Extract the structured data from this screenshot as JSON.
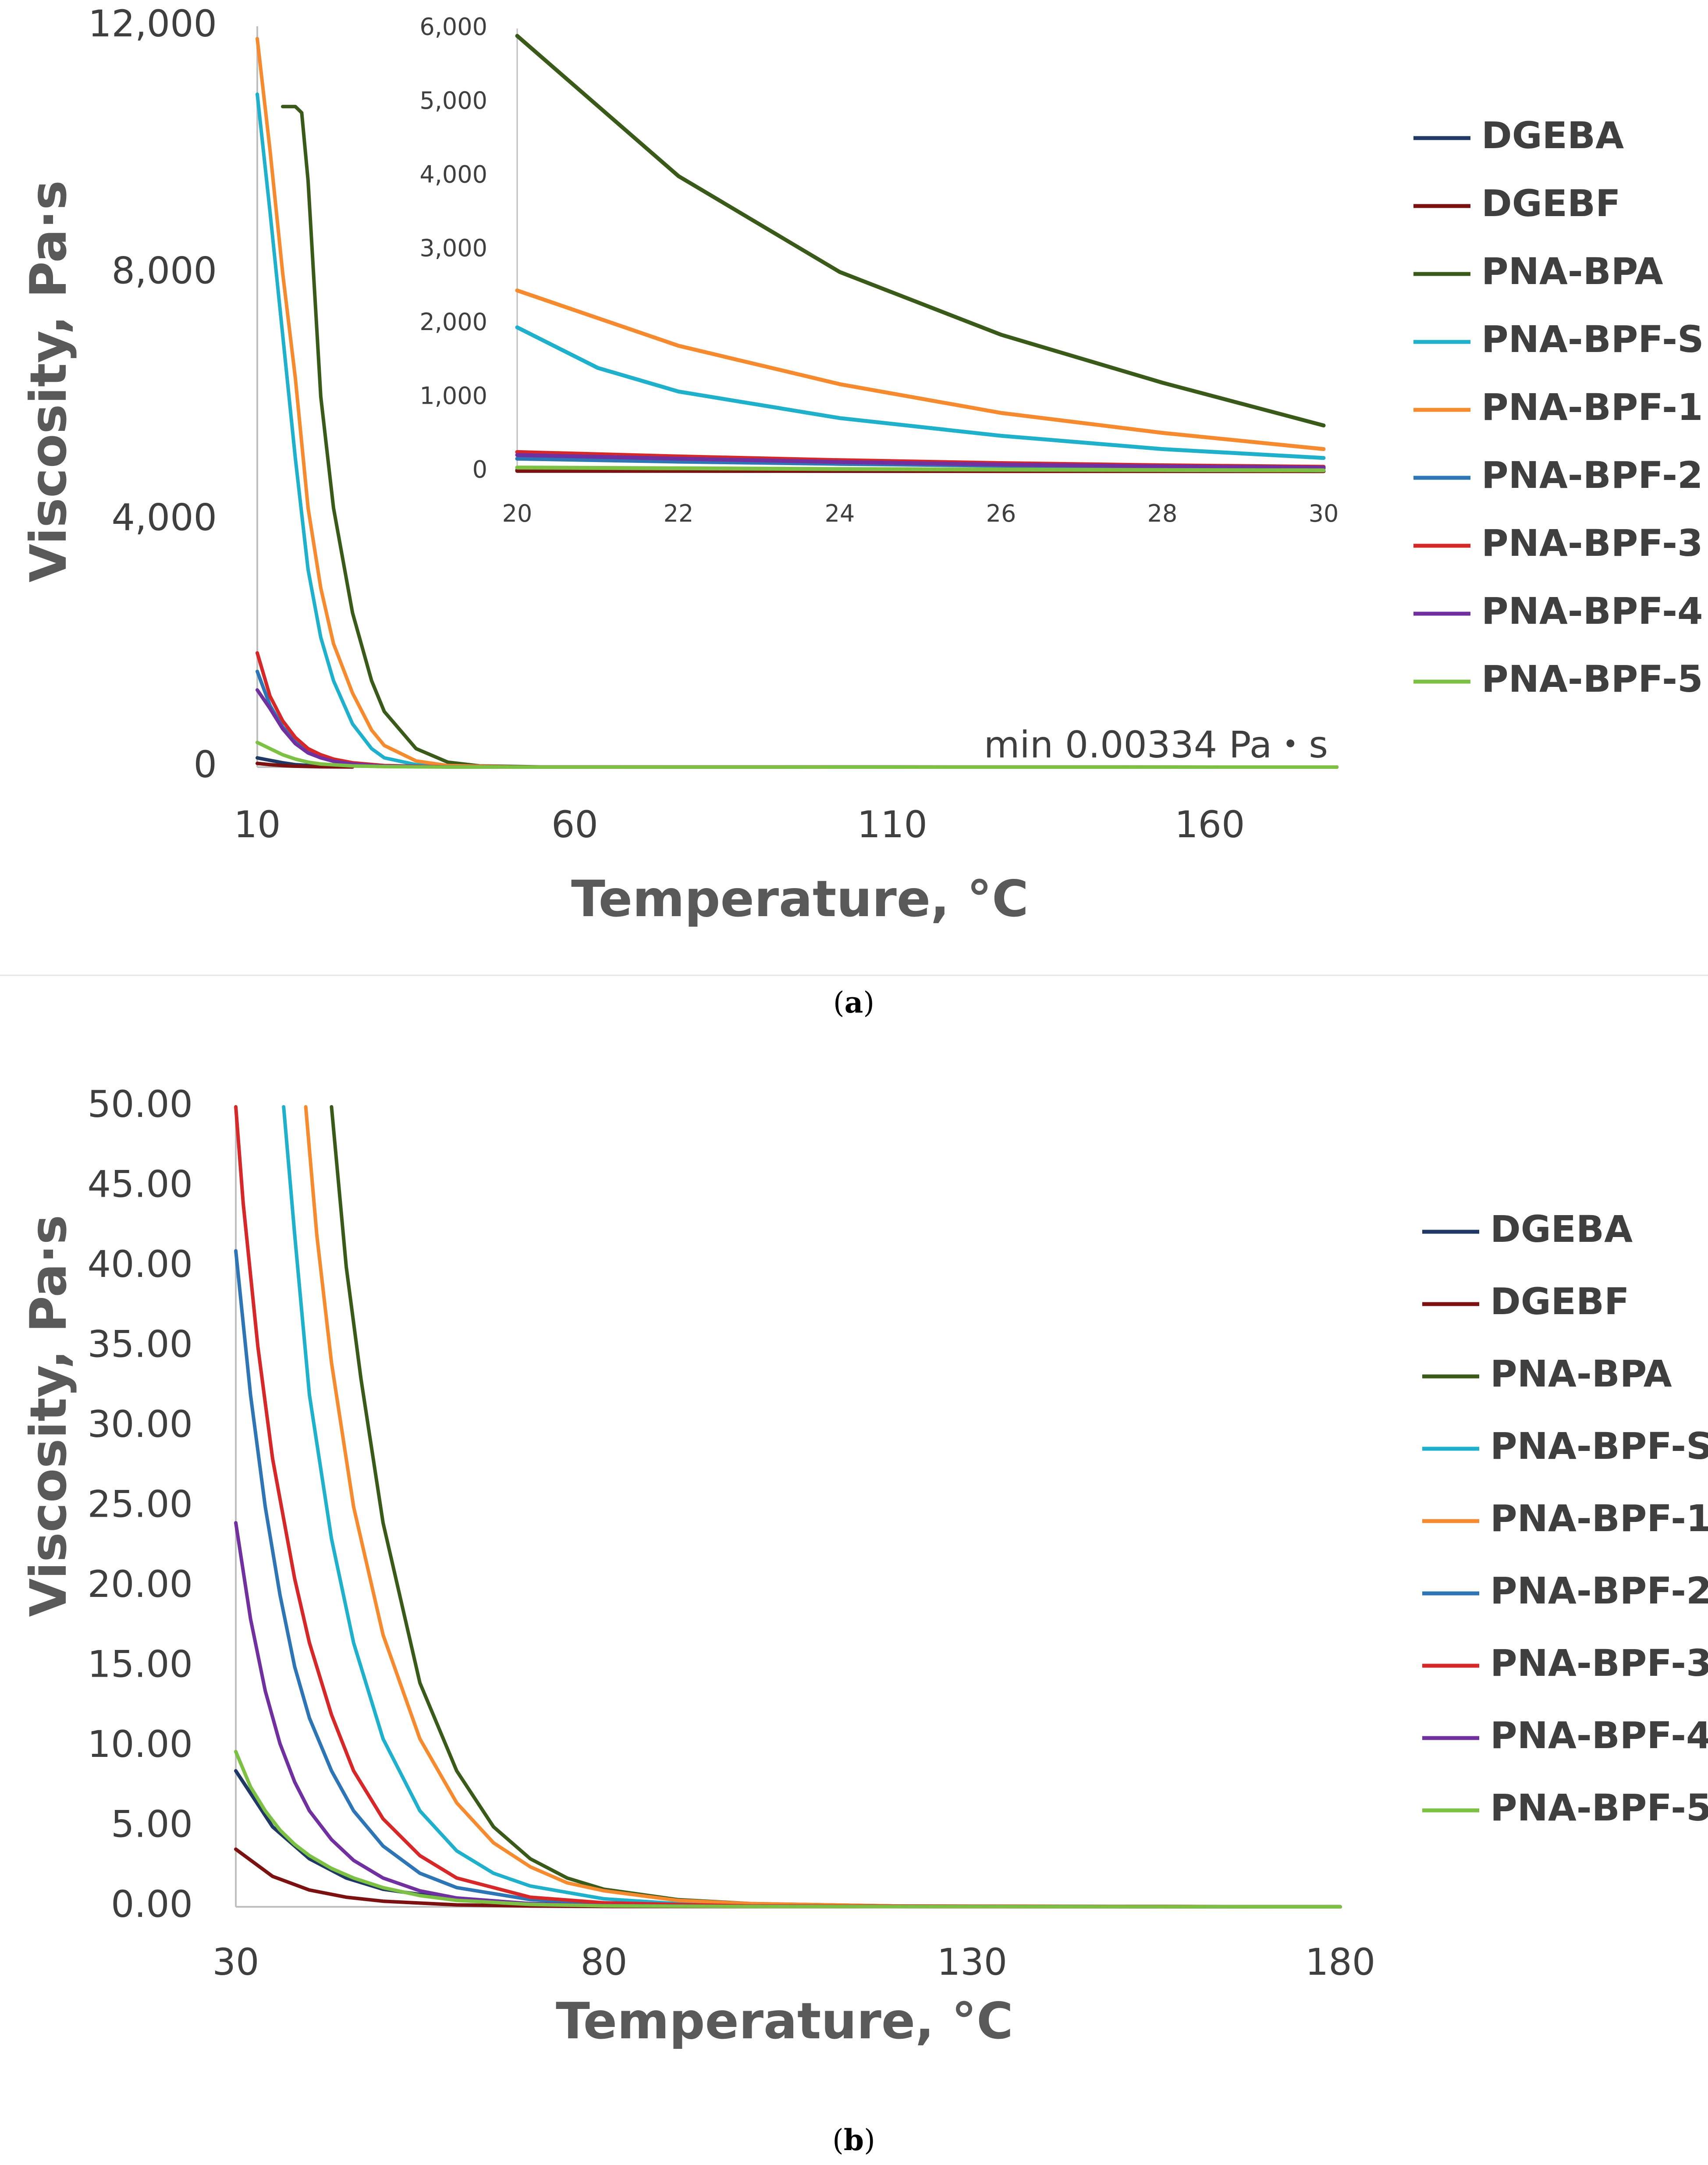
{
  "colors": {
    "DGEBA": "#1f3864",
    "DGEBF": "#7b1111",
    "PNA-BPA": "#3a5a1a",
    "PNA-BPF-S": "#1fb0cc",
    "PNA-BPF-1": "#f68a2e",
    "PNA-BPF-2": "#2e75b6",
    "PNA-BPF-3": "#d62828",
    "PNA-BPF-4": "#7030a0",
    "PNA-BPF-5": "#7cc143",
    "axis": "#bfbfbf",
    "text": "#3f3f3f"
  },
  "panel_a": {
    "caption_open": "(",
    "caption_letter": "a",
    "caption_close": ")"
  },
  "panel_b": {
    "caption_open": "(",
    "caption_letter": "b",
    "caption_close": ")"
  },
  "chart_data": [
    {
      "id": "a-main",
      "type": "line",
      "title": "",
      "xlabel": "Temperature, °C",
      "ylabel": "Viscosity, Pa·s",
      "xlim": [
        10,
        180
      ],
      "ylim": [
        0,
        12000
      ],
      "xticks": [
        10,
        60,
        110,
        160
      ],
      "xtick_labels": [
        "10",
        "60",
        "110",
        "160"
      ],
      "yticks": [
        0,
        4000,
        8000,
        12000
      ],
      "ytick_labels": [
        "0",
        "4,000",
        "8,000",
        "12,000"
      ],
      "annotation": "min 0.00334 Pa・s",
      "legend": [
        "DGEBA",
        "DGEBF",
        "PNA-BPA",
        "PNA-BPF-S",
        "PNA-BPF-1",
        "PNA-BPF-2",
        "PNA-BPF-3",
        "PNA-BPF-4",
        "PNA-BPF-5"
      ],
      "series": [
        {
          "name": "DGEBA",
          "x": [
            10,
            12,
            14,
            16,
            20,
            25
          ],
          "y": [
            150,
            110,
            70,
            40,
            15,
            5
          ]
        },
        {
          "name": "DGEBF",
          "x": [
            10,
            12,
            14,
            16,
            20,
            25
          ],
          "y": [
            60,
            40,
            25,
            15,
            5,
            2
          ]
        },
        {
          "name": "PNA-BPA",
          "x": [
            14,
            16,
            17,
            18,
            20,
            22,
            25,
            28,
            30,
            35,
            40,
            45,
            55,
            70,
            180
          ],
          "y": [
            10700,
            10700,
            10600,
            9500,
            6000,
            4200,
            2500,
            1400,
            900,
            300,
            80,
            20,
            3,
            0.5,
            0.003
          ]
        },
        {
          "name": "PNA-BPF-S",
          "x": [
            10,
            12,
            14,
            16,
            18,
            20,
            22,
            25,
            28,
            30,
            35,
            45,
            60,
            180
          ],
          "y": [
            10900,
            9000,
            7000,
            5000,
            3200,
            2100,
            1400,
            700,
            300,
            150,
            40,
            5,
            1,
            0.003
          ]
        },
        {
          "name": "PNA-BPF-1",
          "x": [
            10,
            12,
            14,
            16,
            18,
            20,
            22,
            25,
            28,
            30,
            35,
            40,
            50,
            65,
            180
          ],
          "y": [
            11800,
            10000,
            8000,
            6300,
            4200,
            2900,
            2000,
            1200,
            600,
            350,
            100,
            25,
            4,
            0.5,
            0.003
          ]
        },
        {
          "name": "PNA-BPF-2",
          "x": [
            10,
            12,
            14,
            16,
            18,
            20,
            22,
            25,
            30,
            40,
            180
          ],
          "y": [
            1550,
            1000,
            650,
            420,
            260,
            170,
            110,
            60,
            20,
            3,
            0.003
          ]
        },
        {
          "name": "PNA-BPF-3",
          "x": [
            10,
            12,
            14,
            16,
            18,
            20,
            22,
            25,
            30,
            40,
            180
          ],
          "y": [
            1850,
            1150,
            750,
            480,
            300,
            200,
            130,
            70,
            25,
            3,
            0.003
          ]
        },
        {
          "name": "PNA-BPF-4",
          "x": [
            10,
            12,
            14,
            16,
            18,
            20,
            22,
            25,
            30,
            40,
            180
          ],
          "y": [
            1250,
            950,
            620,
            380,
            230,
            150,
            95,
            50,
            15,
            2,
            0.003
          ]
        },
        {
          "name": "PNA-BPF-5",
          "x": [
            10,
            12,
            14,
            16,
            18,
            20,
            25,
            30,
            40,
            180
          ],
          "y": [
            400,
            300,
            200,
            130,
            80,
            50,
            20,
            8,
            1,
            0.003
          ]
        }
      ]
    },
    {
      "id": "a-inset",
      "type": "line",
      "title": "",
      "xlabel": "",
      "ylabel": "",
      "xlim": [
        20,
        30
      ],
      "ylim": [
        0,
        6000
      ],
      "xticks": [
        20,
        22,
        24,
        26,
        28,
        30
      ],
      "xtick_labels": [
        "20",
        "22",
        "24",
        "26",
        "28",
        "30"
      ],
      "yticks": [
        0,
        1000,
        2000,
        3000,
        4000,
        5000,
        6000
      ],
      "ytick_labels": [
        "0",
        "1,000",
        "2,000",
        "3,000",
        "4,000",
        "5,000",
        "6,000"
      ],
      "series": [
        {
          "name": "DGEBA",
          "x": [
            20,
            22,
            24,
            26,
            28,
            30
          ],
          "y": [
            15,
            10,
            7,
            5,
            3,
            2
          ]
        },
        {
          "name": "DGEBF",
          "x": [
            20,
            22,
            24,
            26,
            28,
            30
          ],
          "y": [
            5,
            4,
            3,
            2,
            1.5,
            1
          ]
        },
        {
          "name": "PNA-BPA",
          "x": [
            20,
            22,
            24,
            26,
            28,
            30
          ],
          "y": [
            5900,
            4000,
            2700,
            1850,
            1200,
            620
          ]
        },
        {
          "name": "PNA-BPF-S",
          "x": [
            20,
            21,
            22,
            24,
            26,
            28,
            30
          ],
          "y": [
            1950,
            1400,
            1080,
            720,
            480,
            300,
            180
          ]
        },
        {
          "name": "PNA-BPF-1",
          "x": [
            20,
            22,
            24,
            26,
            28,
            30
          ],
          "y": [
            2450,
            1700,
            1180,
            790,
            520,
            300
          ]
        },
        {
          "name": "PNA-BPF-2",
          "x": [
            20,
            22,
            24,
            26,
            28,
            30
          ],
          "y": [
            170,
            130,
            100,
            75,
            55,
            40
          ]
        },
        {
          "name": "PNA-BPF-3",
          "x": [
            20,
            22,
            24,
            26,
            28,
            30
          ],
          "y": [
            260,
            200,
            150,
            110,
            80,
            60
          ]
        },
        {
          "name": "PNA-BPF-4",
          "x": [
            20,
            22,
            24,
            26,
            28,
            30
          ],
          "y": [
            220,
            170,
            125,
            90,
            65,
            50
          ]
        },
        {
          "name": "PNA-BPF-5",
          "x": [
            20,
            22,
            24,
            26,
            28,
            30
          ],
          "y": [
            50,
            40,
            30,
            22,
            16,
            12
          ]
        }
      ]
    },
    {
      "id": "b-main",
      "type": "line",
      "title": "",
      "xlabel": "Temperature, °C",
      "ylabel": "Viscosity, Pa·s",
      "xlim": [
        30,
        180
      ],
      "ylim": [
        0,
        50
      ],
      "xticks": [
        30,
        80,
        130,
        180
      ],
      "xtick_labels": [
        "30",
        "80",
        "130",
        "180"
      ],
      "yticks": [
        0,
        5,
        10,
        15,
        20,
        25,
        30,
        35,
        40,
        45,
        50
      ],
      "ytick_labels": [
        "0.00",
        "5.00",
        "10.00",
        "15.00",
        "20.00",
        "25.00",
        "30.00",
        "35.00",
        "40.00",
        "45.00",
        "50.00"
      ],
      "legend": [
        "DGEBA",
        "DGEBF",
        "PNA-BPA",
        "PNA-BPF-S",
        "PNA-BPF-1",
        "PNA-BPF-2",
        "PNA-BPF-3",
        "PNA-BPF-4",
        "PNA-BPF-5"
      ],
      "series": [
        {
          "name": "DGEBA",
          "x": [
            30,
            35,
            40,
            45,
            50,
            60,
            70,
            80,
            100,
            180
          ],
          "y": [
            8.5,
            5.0,
            3.0,
            1.8,
            1.1,
            0.45,
            0.2,
            0.1,
            0.05,
            0.003
          ]
        },
        {
          "name": "DGEBF",
          "x": [
            30,
            35,
            40,
            45,
            50,
            60,
            70,
            80,
            100,
            180
          ],
          "y": [
            3.6,
            1.9,
            1.05,
            0.6,
            0.35,
            0.12,
            0.05,
            0.02,
            0.01,
            0.003
          ]
        },
        {
          "name": "PNA-BPA",
          "x": [
            43,
            45,
            47,
            50,
            55,
            60,
            65,
            70,
            75,
            80,
            90,
            100,
            120,
            180
          ],
          "y": [
            50,
            40,
            33,
            24,
            14,
            8.5,
            5.0,
            3.0,
            1.8,
            1.1,
            0.45,
            0.2,
            0.05,
            0.003
          ]
        },
        {
          "name": "PNA-BPF-S",
          "x": [
            36.5,
            38,
            40,
            43,
            46,
            50,
            55,
            60,
            65,
            70,
            80,
            90,
            100,
            120,
            180
          ],
          "y": [
            50,
            42,
            32,
            23,
            16.5,
            10.5,
            6.0,
            3.5,
            2.1,
            1.3,
            0.5,
            0.2,
            0.1,
            0.03,
            0.003
          ]
        },
        {
          "name": "PNA-BPF-1",
          "x": [
            39.5,
            41,
            43,
            46,
            50,
            55,
            60,
            65,
            70,
            75,
            80,
            90,
            100,
            120,
            180
          ],
          "y": [
            50,
            42,
            34,
            25,
            17,
            10.5,
            6.5,
            4.0,
            2.5,
            1.5,
            1.0,
            0.4,
            0.2,
            0.05,
            0.003
          ]
        },
        {
          "name": "PNA-BPF-2",
          "x": [
            30,
            32,
            34,
            36,
            38,
            40,
            43,
            46,
            50,
            55,
            60,
            70,
            80,
            100,
            180
          ],
          "y": [
            41,
            32,
            25,
            19.5,
            15,
            11.8,
            8.5,
            6.0,
            3.8,
            2.1,
            1.2,
            0.45,
            0.2,
            0.05,
            0.003
          ]
        },
        {
          "name": "PNA-BPF-3",
          "x": [
            30,
            31,
            33,
            35,
            38,
            40,
            43,
            46,
            50,
            55,
            60,
            70,
            80,
            100,
            180
          ],
          "y": [
            50,
            44,
            35,
            28,
            20.5,
            16.5,
            12,
            8.5,
            5.5,
            3.2,
            1.8,
            0.6,
            0.25,
            0.05,
            0.003
          ]
        },
        {
          "name": "PNA-BPF-4",
          "x": [
            30,
            32,
            34,
            36,
            38,
            40,
            43,
            46,
            50,
            55,
            60,
            70,
            80,
            100,
            180
          ],
          "y": [
            24,
            18,
            13.5,
            10.2,
            7.8,
            6.0,
            4.2,
            2.9,
            1.8,
            1.0,
            0.55,
            0.2,
            0.08,
            0.02,
            0.003
          ]
        },
        {
          "name": "PNA-BPF-5",
          "x": [
            30,
            32,
            34,
            36,
            38,
            40,
            43,
            46,
            50,
            55,
            60,
            70,
            80,
            100,
            180
          ],
          "y": [
            9.7,
            7.5,
            6.0,
            4.8,
            3.9,
            3.2,
            2.4,
            1.8,
            1.2,
            0.7,
            0.4,
            0.15,
            0.06,
            0.02,
            0.003
          ]
        }
      ]
    }
  ]
}
